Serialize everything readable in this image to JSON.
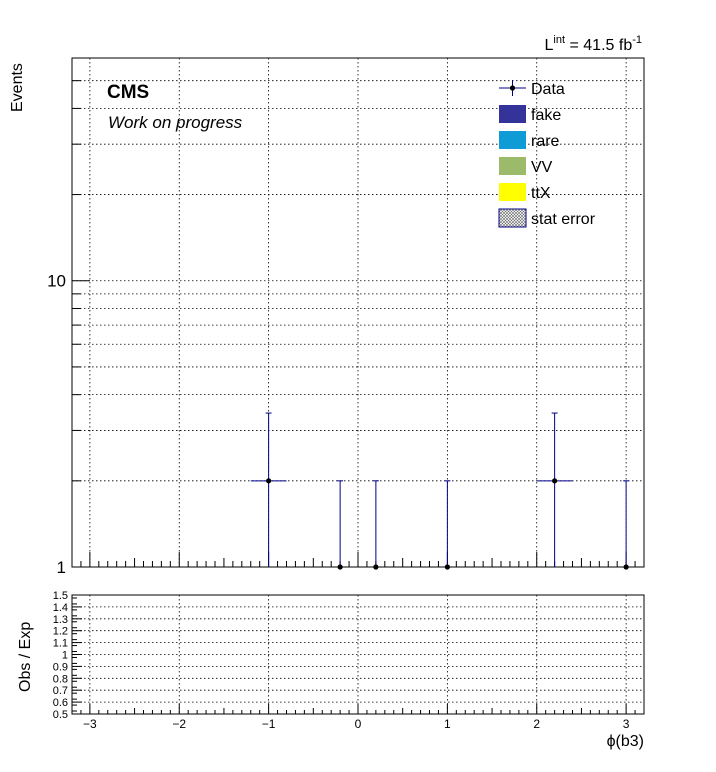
{
  "header": {
    "lumi_base": "L",
    "lumi_sup": "int",
    "lumi_text": " = 41.5 fb",
    "lumi_exp": "-1"
  },
  "labels": {
    "cms": "CMS",
    "subtitle": "Work on progress"
  },
  "legend": {
    "items": [
      {
        "label": "Data",
        "kind": "marker",
        "color": "#00008b"
      },
      {
        "label": "fake",
        "kind": "box",
        "color": "#333399"
      },
      {
        "label": "rare",
        "kind": "box",
        "color": "#0e9bd6"
      },
      {
        "label": "VV",
        "kind": "box",
        "color": "#9bbb6b"
      },
      {
        "label": "ttX",
        "kind": "box",
        "color": "#ffff00"
      },
      {
        "label": "stat error",
        "kind": "hatch",
        "color": "#000000"
      }
    ]
  },
  "chart_data": [
    {
      "type": "scatter",
      "panel": "main",
      "ylabel": "Events",
      "xlabel": "",
      "xlim": [
        -3.2,
        3.2
      ],
      "ylim": [
        1,
        60
      ],
      "yscale": "log",
      "yticks": [
        1,
        10
      ],
      "grid": true,
      "legend_position": "top-right",
      "series": [
        {
          "name": "Data",
          "x": [
            -1.0,
            -0.2,
            0.2,
            1.0,
            2.2,
            3.0
          ],
          "y": [
            2,
            1,
            1,
            1,
            2,
            1
          ],
          "xerr": [
            0.2,
            0,
            0,
            0,
            0.2,
            0
          ],
          "yerr_up": [
            1.45,
            1.0,
            1.0,
            1.0,
            1.45,
            1.0
          ],
          "yerr_down": [
            1.0,
            0,
            0,
            0,
            1.0,
            0
          ]
        }
      ]
    },
    {
      "type": "scatter",
      "panel": "ratio",
      "ylabel": "Obs / Exp",
      "xlabel": "ϕ(b3)",
      "xlim": [
        -3.2,
        3.2
      ],
      "ylim": [
        0.5,
        1.5
      ],
      "yticks": [
        "0.5",
        "0.6",
        "0.7",
        "0.8",
        "0.9",
        "1",
        "1.1",
        "1.2",
        "1.3",
        "1.4",
        "1.5"
      ],
      "xticks": [
        "−3",
        "−2",
        "−1",
        "0",
        "1",
        "2",
        "3"
      ],
      "grid": true,
      "series": []
    }
  ]
}
